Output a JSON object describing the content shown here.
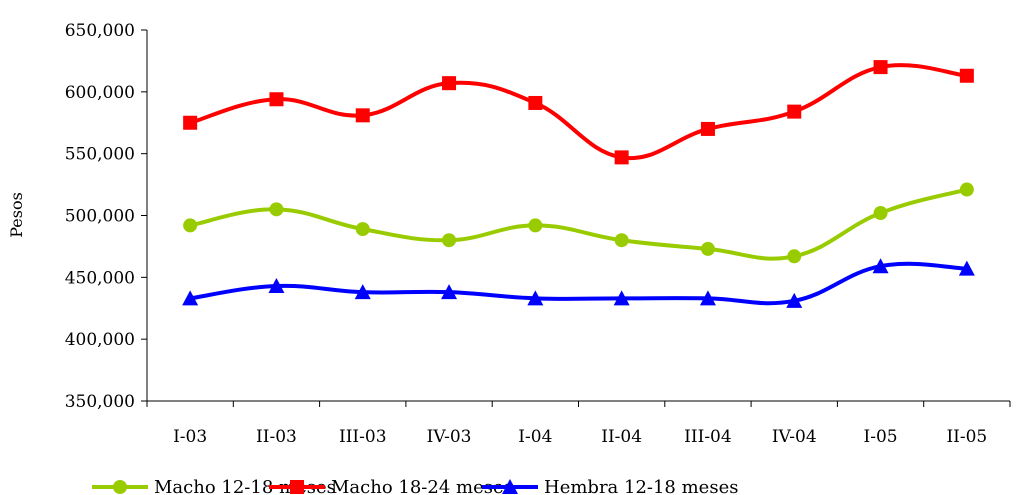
{
  "chart_data": {
    "type": "line",
    "title": "",
    "xlabel": "",
    "ylabel": "Pesos",
    "ylim": [
      350000,
      650000
    ],
    "yticks": [
      350000,
      400000,
      450000,
      500000,
      550000,
      600000,
      650000
    ],
    "ytick_labels": [
      "350,000",
      "400,000",
      "450,000",
      "500,000",
      "550,000",
      "600,000",
      "650,000"
    ],
    "categories": [
      "I-03",
      "II-03",
      "III-03",
      "IV-03",
      "I-04",
      "II-04",
      "III-04",
      "IV-04",
      "I-05",
      "II-05"
    ],
    "grid": false,
    "legend_position": "bottom",
    "series": [
      {
        "name": "Macho 12-18 meses",
        "color": "#99cc00",
        "marker": "circle",
        "values": [
          492000,
          505000,
          489000,
          480000,
          492000,
          480000,
          473000,
          467000,
          502000,
          521000
        ]
      },
      {
        "name": "Macho 18-24 meses",
        "color": "#ff0000",
        "marker": "square",
        "values": [
          575000,
          594000,
          581000,
          607000,
          591000,
          547000,
          570000,
          584000,
          620000,
          613000
        ]
      },
      {
        "name": "Hembra 12-18 meses",
        "color": "#0000ff",
        "marker": "triangle",
        "values": [
          433000,
          443000,
          438000,
          438000,
          433000,
          433000,
          433000,
          431000,
          459000,
          457000
        ]
      }
    ]
  }
}
